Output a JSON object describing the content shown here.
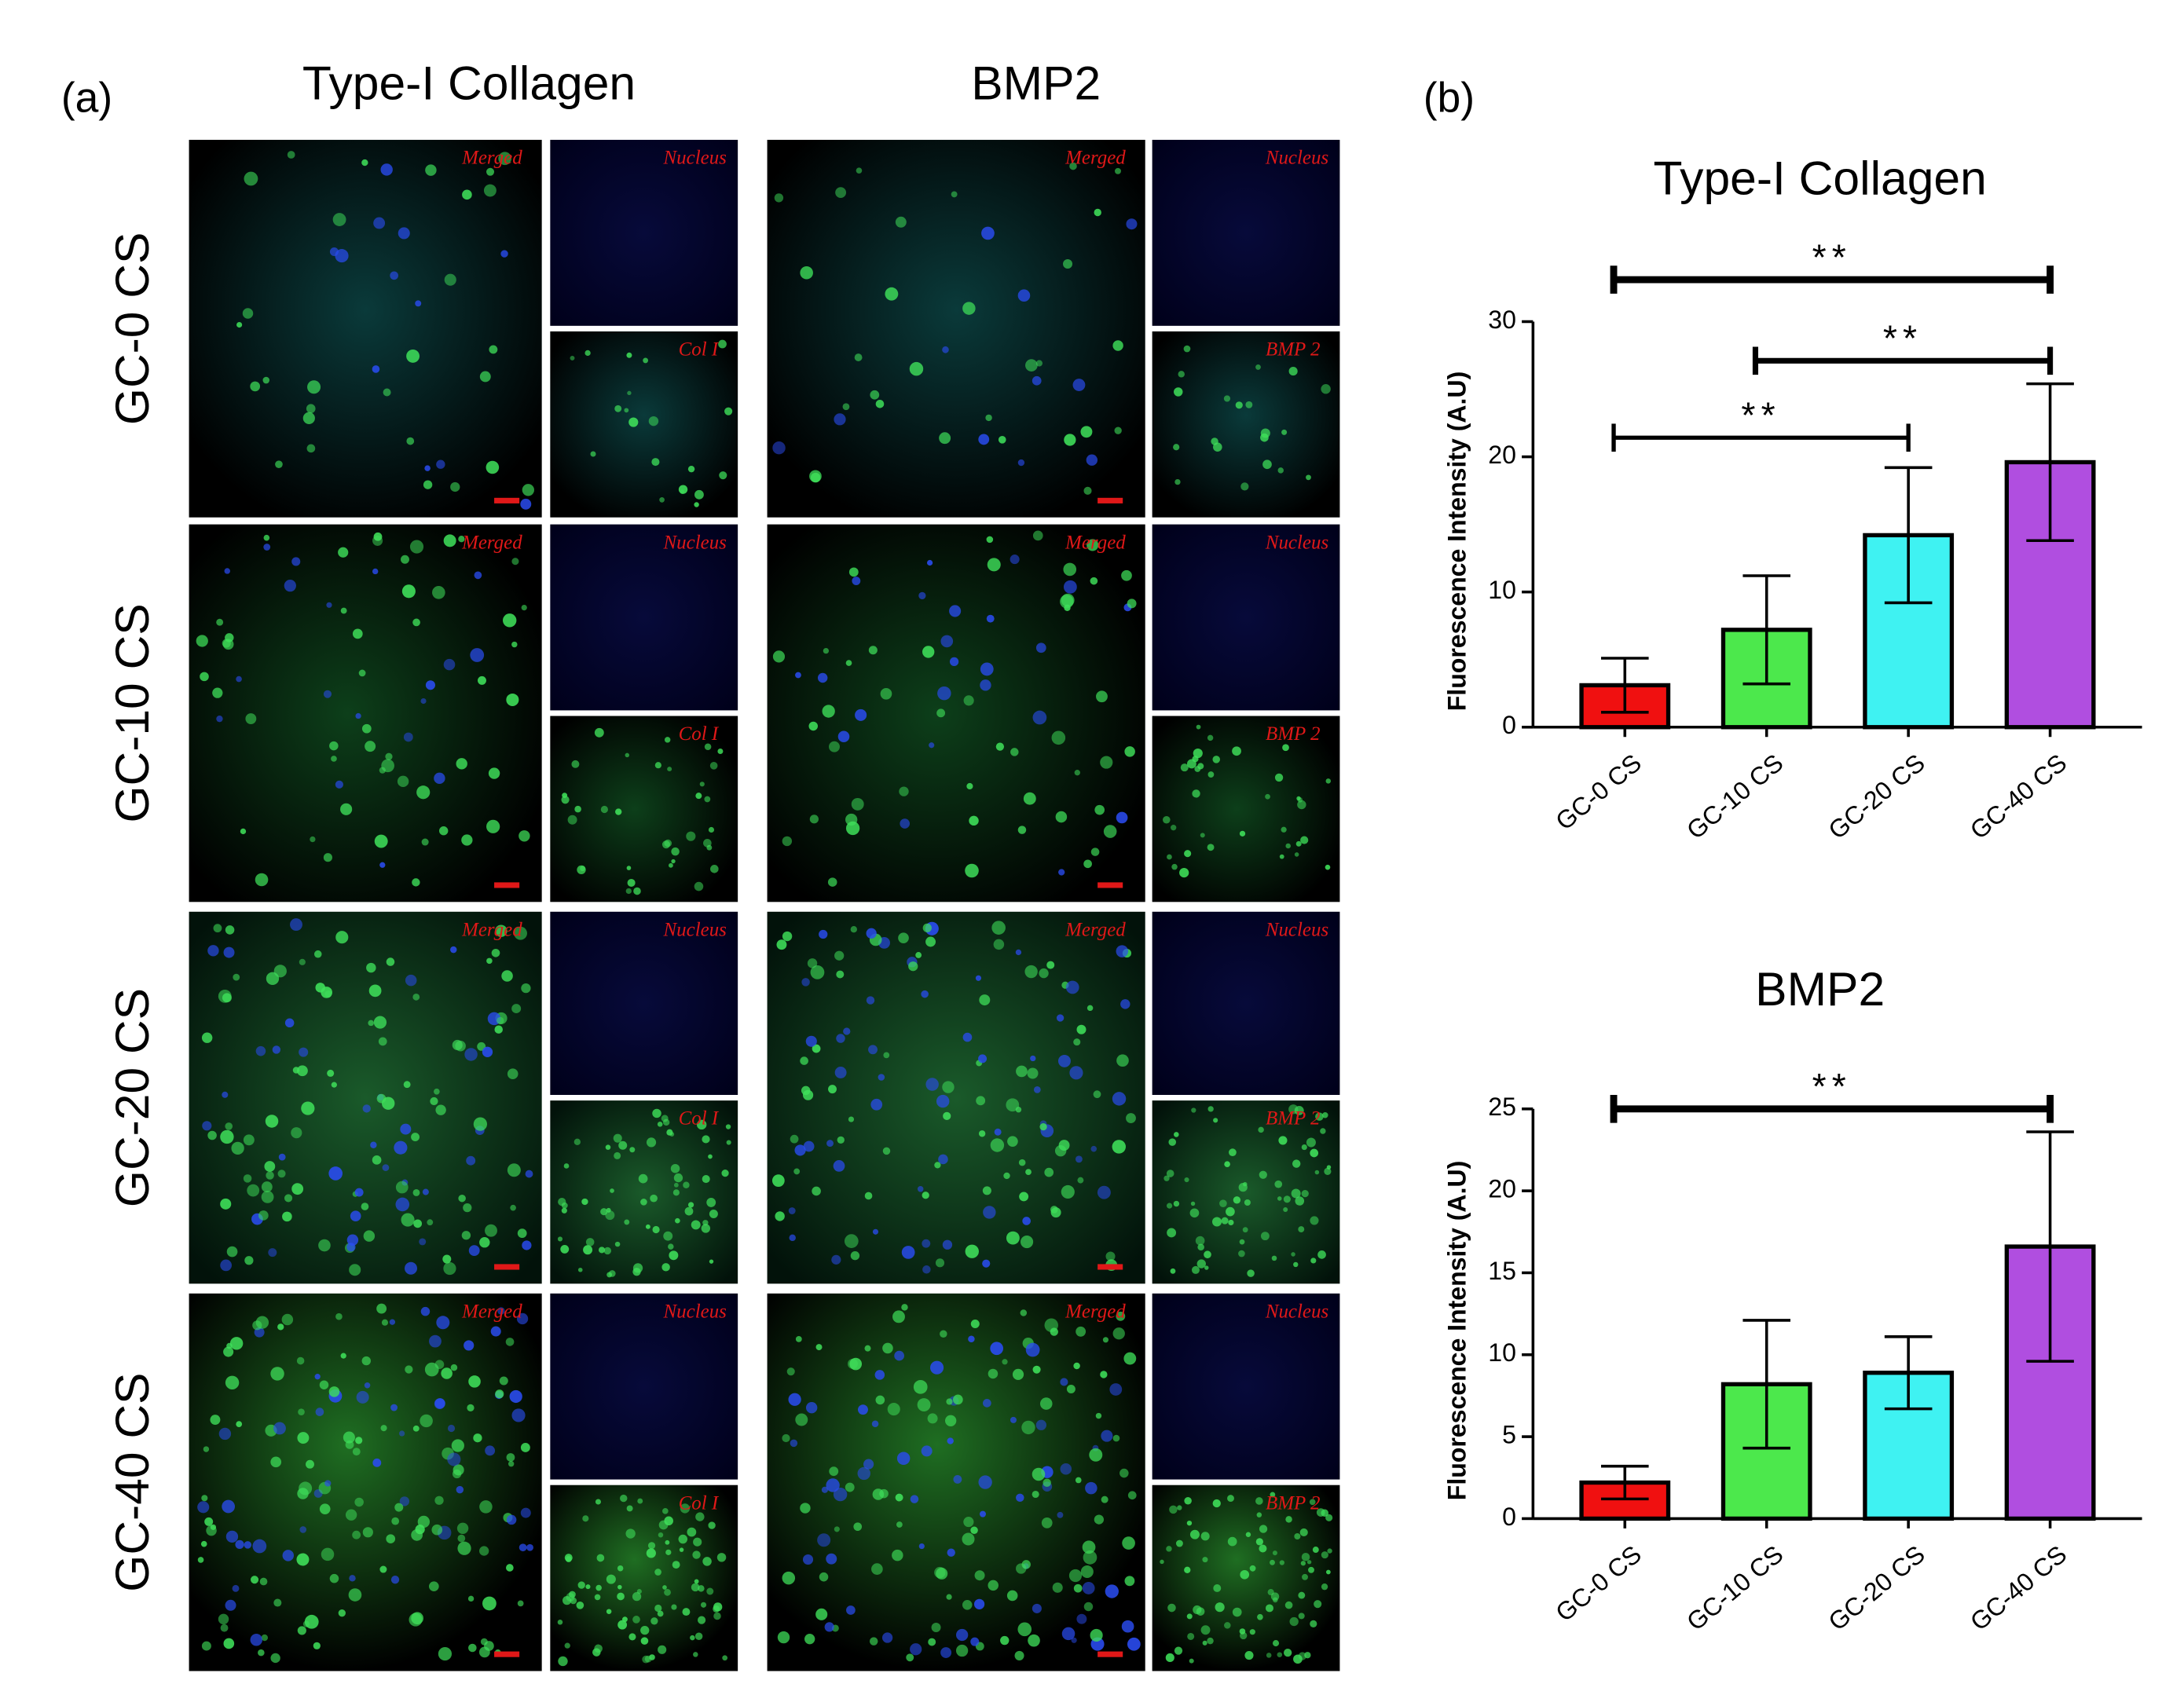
{
  "figure": {
    "panel_a": "(a)",
    "panel_b": "(b)",
    "columns": [
      "Type-I Collagen",
      "BMP2"
    ],
    "rows": [
      "GC-0 CS",
      "GC-10 CS",
      "GC-20 CS",
      "GC-40 CS"
    ],
    "channels": {
      "merged": "Merged",
      "nucleus": "Nucleus",
      "collagen": "Col I",
      "bmp": "BMP 2"
    }
  },
  "chart_data": [
    {
      "type": "bar",
      "title": "Type-I Collagen",
      "y_label": "Fluorescence Intensity (A.U)",
      "categories": [
        "GC-0 CS",
        "GC-10 CS",
        "GC-20 CS",
        "GC-40 CS"
      ],
      "values": [
        3.1,
        7.2,
        14.2,
        19.6
      ],
      "errors": [
        2.0,
        4.0,
        5.0,
        5.8
      ],
      "colors": [
        "#f01010",
        "#4ce84c",
        "#3ff2f2",
        "#b04ee0"
      ],
      "ylim": [
        0,
        30
      ],
      "yticks": [
        0,
        10,
        20,
        30
      ],
      "annotations": [
        "**",
        "**",
        "**"
      ]
    },
    {
      "type": "bar",
      "title": "BMP2",
      "y_label": "Fluorescence Intensity (A.U)",
      "categories": [
        "GC-0 CS",
        "GC-10 CS",
        "GC-20 CS",
        "GC-40 CS"
      ],
      "values": [
        2.2,
        8.2,
        8.9,
        16.6
      ],
      "errors": [
        1.0,
        3.9,
        2.2,
        7.0
      ],
      "colors": [
        "#f01010",
        "#4ce84c",
        "#3ff2f2",
        "#b04ee0"
      ],
      "ylim": [
        0,
        25
      ],
      "yticks": [
        0,
        5,
        10,
        15,
        20,
        25
      ],
      "annotations": [
        "**"
      ]
    }
  ]
}
